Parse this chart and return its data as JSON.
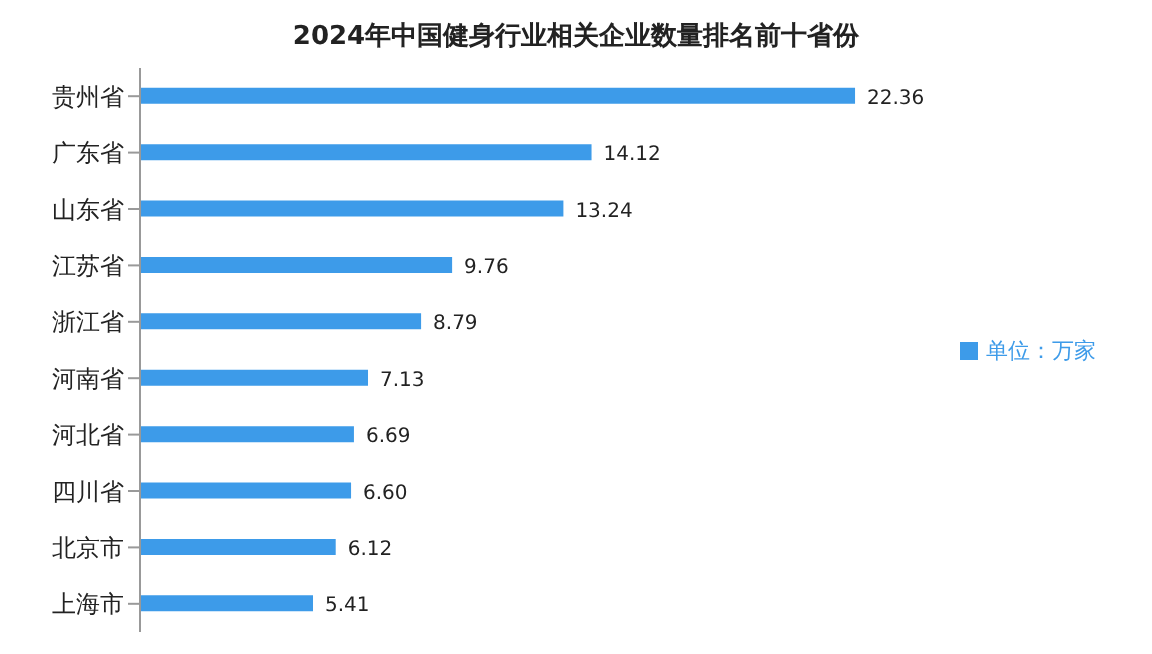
{
  "chart_data": {
    "type": "bar",
    "orientation": "horizontal",
    "title": "2024年中国健身行业相关企业数量排名前十省份",
    "categories": [
      "贵州省",
      "广东省",
      "山东省",
      "江苏省",
      "浙江省",
      "河南省",
      "河北省",
      "四川省",
      "北京市",
      "上海市"
    ],
    "series": [
      {
        "name": "单位：万家",
        "color": "#3d9be9",
        "values": [
          22.36,
          14.12,
          13.24,
          9.76,
          8.79,
          7.13,
          6.69,
          6.6,
          6.12,
          5.41
        ],
        "value_labels": [
          "22.36",
          "14.12",
          "13.24",
          "9.76",
          "8.79",
          "7.13",
          "6.69",
          "6.60",
          "6.12",
          "5.41"
        ]
      }
    ],
    "legend": "right",
    "grid": false
  }
}
